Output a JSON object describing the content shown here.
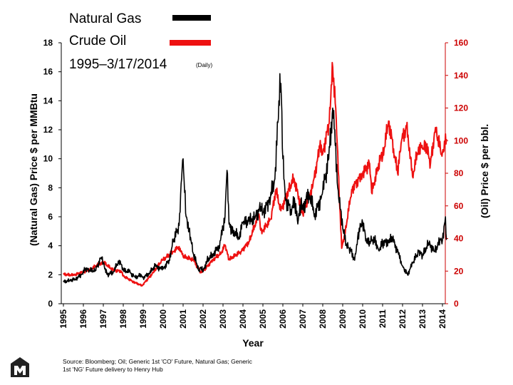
{
  "chart_data": {
    "type": "line",
    "legend": [
      "Natural Gas",
      "Crude Oil",
      "1995–3/17/2014"
    ],
    "legend_note": "(Daily)",
    "xlabel": "Year",
    "ylabel_left": "(Natural Gas) Price $ per MMBtu",
    "ylabel_right": "(Oil) Price $ per bbl.",
    "xlim": [
      1995,
      2014.2
    ],
    "ylim_left": [
      0,
      18
    ],
    "ylim_right": [
      0,
      160
    ],
    "x_ticks": [
      "1995",
      "1996",
      "1997",
      "1998",
      "1999",
      "2000",
      "2001",
      "2002",
      "2003",
      "2004",
      "2005",
      "2006",
      "2007",
      "2008",
      "2009",
      "2010",
      "2011",
      "2012",
      "2013",
      "2014"
    ],
    "y_ticks_left": [
      "0",
      "2",
      "4",
      "6",
      "8",
      "10",
      "12",
      "14",
      "16",
      "18"
    ],
    "y_ticks_right": [
      "0",
      "20",
      "40",
      "60",
      "80",
      "100",
      "120",
      "140",
      "160"
    ],
    "grid": false,
    "series": [
      {
        "name": "Natural Gas",
        "color": "#000000",
        "axis": "left",
        "points": [
          [
            1995.0,
            1.5
          ],
          [
            1995.3,
            1.6
          ],
          [
            1995.6,
            1.7
          ],
          [
            1995.9,
            2.0
          ],
          [
            1996.1,
            2.4
          ],
          [
            1996.3,
            2.3
          ],
          [
            1996.6,
            2.3
          ],
          [
            1996.9,
            3.2
          ],
          [
            1997.0,
            2.8
          ],
          [
            1997.2,
            2.0
          ],
          [
            1997.5,
            2.2
          ],
          [
            1997.8,
            3.0
          ],
          [
            1998.0,
            2.3
          ],
          [
            1998.3,
            2.2
          ],
          [
            1998.6,
            1.8
          ],
          [
            1998.9,
            2.0
          ],
          [
            1999.0,
            1.8
          ],
          [
            1999.3,
            2.1
          ],
          [
            1999.6,
            2.6
          ],
          [
            1999.9,
            2.4
          ],
          [
            2000.0,
            2.4
          ],
          [
            2000.3,
            3.0
          ],
          [
            2000.5,
            4.3
          ],
          [
            2000.8,
            5.4
          ],
          [
            2000.95,
            9.3
          ],
          [
            2001.0,
            10.0
          ],
          [
            2001.05,
            8.5
          ],
          [
            2001.15,
            6.0
          ],
          [
            2001.3,
            5.2
          ],
          [
            2001.5,
            3.5
          ],
          [
            2001.8,
            2.3
          ],
          [
            2001.9,
            2.5
          ],
          [
            2002.0,
            2.2
          ],
          [
            2002.2,
            3.0
          ],
          [
            2002.5,
            3.4
          ],
          [
            2002.8,
            4.0
          ],
          [
            2003.0,
            5.2
          ],
          [
            2003.1,
            6.0
          ],
          [
            2003.2,
            9.2
          ],
          [
            2003.3,
            5.5
          ],
          [
            2003.5,
            5.0
          ],
          [
            2003.8,
            4.6
          ],
          [
            2004.0,
            5.6
          ],
          [
            2004.3,
            5.7
          ],
          [
            2004.6,
            5.9
          ],
          [
            2004.9,
            6.7
          ],
          [
            2005.0,
            6.3
          ],
          [
            2005.3,
            7.0
          ],
          [
            2005.6,
            8.6
          ],
          [
            2005.75,
            12.5
          ],
          [
            2005.8,
            14.0
          ],
          [
            2005.9,
            15.2
          ],
          [
            2006.0,
            10.0
          ],
          [
            2006.15,
            7.1
          ],
          [
            2006.4,
            6.5
          ],
          [
            2006.6,
            7.0
          ],
          [
            2006.75,
            5.5
          ],
          [
            2006.9,
            6.8
          ],
          [
            2007.0,
            6.5
          ],
          [
            2007.3,
            7.7
          ],
          [
            2007.6,
            6.2
          ],
          [
            2007.9,
            7.2
          ],
          [
            2008.0,
            7.8
          ],
          [
            2008.3,
            10.0
          ],
          [
            2008.5,
            13.5
          ],
          [
            2008.6,
            12.0
          ],
          [
            2008.75,
            8.0
          ],
          [
            2008.9,
            6.5
          ],
          [
            2009.0,
            5.2
          ],
          [
            2009.2,
            4.0
          ],
          [
            2009.4,
            3.7
          ],
          [
            2009.6,
            3.0
          ],
          [
            2009.75,
            4.6
          ],
          [
            2009.9,
            5.5
          ],
          [
            2010.0,
            5.6
          ],
          [
            2010.2,
            4.2
          ],
          [
            2010.4,
            4.3
          ],
          [
            2010.6,
            4.5
          ],
          [
            2010.8,
            3.7
          ],
          [
            2011.0,
            4.2
          ],
          [
            2011.3,
            4.3
          ],
          [
            2011.5,
            4.5
          ],
          [
            2011.8,
            3.4
          ],
          [
            2012.0,
            2.6
          ],
          [
            2012.25,
            2.0
          ],
          [
            2012.5,
            2.8
          ],
          [
            2012.8,
            3.6
          ],
          [
            2013.0,
            3.3
          ],
          [
            2013.3,
            4.2
          ],
          [
            2013.6,
            3.6
          ],
          [
            2013.9,
            4.4
          ],
          [
            2014.0,
            4.4
          ],
          [
            2014.1,
            5.5
          ],
          [
            2014.15,
            6.0
          ],
          [
            2014.2,
            4.4
          ]
        ]
      },
      {
        "name": "Crude Oil",
        "color": "#ee1111",
        "axis": "right",
        "points": [
          [
            1995.0,
            18.0
          ],
          [
            1995.5,
            17.5
          ],
          [
            1996.0,
            19.5
          ],
          [
            1996.4,
            21.5
          ],
          [
            1996.9,
            25.0
          ],
          [
            1997.0,
            25.5
          ],
          [
            1997.5,
            20.5
          ],
          [
            1997.9,
            20.0
          ],
          [
            1998.0,
            17.0
          ],
          [
            1998.5,
            13.5
          ],
          [
            1998.95,
            11.0
          ],
          [
            1999.0,
            12.0
          ],
          [
            1999.5,
            19.0
          ],
          [
            1999.9,
            26.0
          ],
          [
            2000.0,
            27.0
          ],
          [
            2000.5,
            32.0
          ],
          [
            2000.8,
            35.0
          ],
          [
            2001.0,
            29.0
          ],
          [
            2001.5,
            27.0
          ],
          [
            2001.9,
            19.0
          ],
          [
            2002.0,
            20.0
          ],
          [
            2002.5,
            27.0
          ],
          [
            2002.9,
            31.0
          ],
          [
            2003.1,
            36.0
          ],
          [
            2003.3,
            27.0
          ],
          [
            2003.9,
            32.0
          ],
          [
            2004.3,
            38.0
          ],
          [
            2004.8,
            55.0
          ],
          [
            2004.9,
            45.0
          ],
          [
            2005.0,
            45.0
          ],
          [
            2005.4,
            52.0
          ],
          [
            2005.65,
            70.0
          ],
          [
            2005.9,
            57.0
          ],
          [
            2006.3,
            70.0
          ],
          [
            2006.55,
            77.0
          ],
          [
            2006.9,
            60.0
          ],
          [
            2007.0,
            55.0
          ],
          [
            2007.5,
            72.0
          ],
          [
            2007.85,
            96.0
          ],
          [
            2008.0,
            92.0
          ],
          [
            2008.3,
            110.0
          ],
          [
            2008.5,
            145.0
          ],
          [
            2008.65,
            120.0
          ],
          [
            2008.85,
            60.0
          ],
          [
            2008.95,
            34.0
          ],
          [
            2009.1,
            42.0
          ],
          [
            2009.45,
            70.0
          ],
          [
            2009.9,
            78.0
          ],
          [
            2010.0,
            80.0
          ],
          [
            2010.35,
            86.0
          ],
          [
            2010.45,
            68.0
          ],
          [
            2010.9,
            90.0
          ],
          [
            2011.0,
            90.0
          ],
          [
            2011.3,
            112.0
          ],
          [
            2011.55,
            95.0
          ],
          [
            2011.75,
            80.0
          ],
          [
            2011.95,
            100.0
          ],
          [
            2012.2,
            108.0
          ],
          [
            2012.4,
            90.0
          ],
          [
            2012.5,
            78.0
          ],
          [
            2012.8,
            96.0
          ],
          [
            2013.0,
            95.0
          ],
          [
            2013.2,
            96.0
          ],
          [
            2013.4,
            86.0
          ],
          [
            2013.65,
            108.0
          ],
          [
            2013.95,
            92.0
          ],
          [
            2014.0,
            93.0
          ],
          [
            2014.2,
            101.0
          ]
        ]
      }
    ],
    "source": "Source: Bloomberg; Oil; Generic 1st 'CO' Future, Natural Gas; Generic 1st 'NG' Future delivery to Henry Hub"
  },
  "colors": {
    "gas": "#000000",
    "oil": "#ee1111",
    "left_axis": "#000000",
    "right_axis": "#cc0000"
  },
  "logo_icon": "m-logo-icon"
}
